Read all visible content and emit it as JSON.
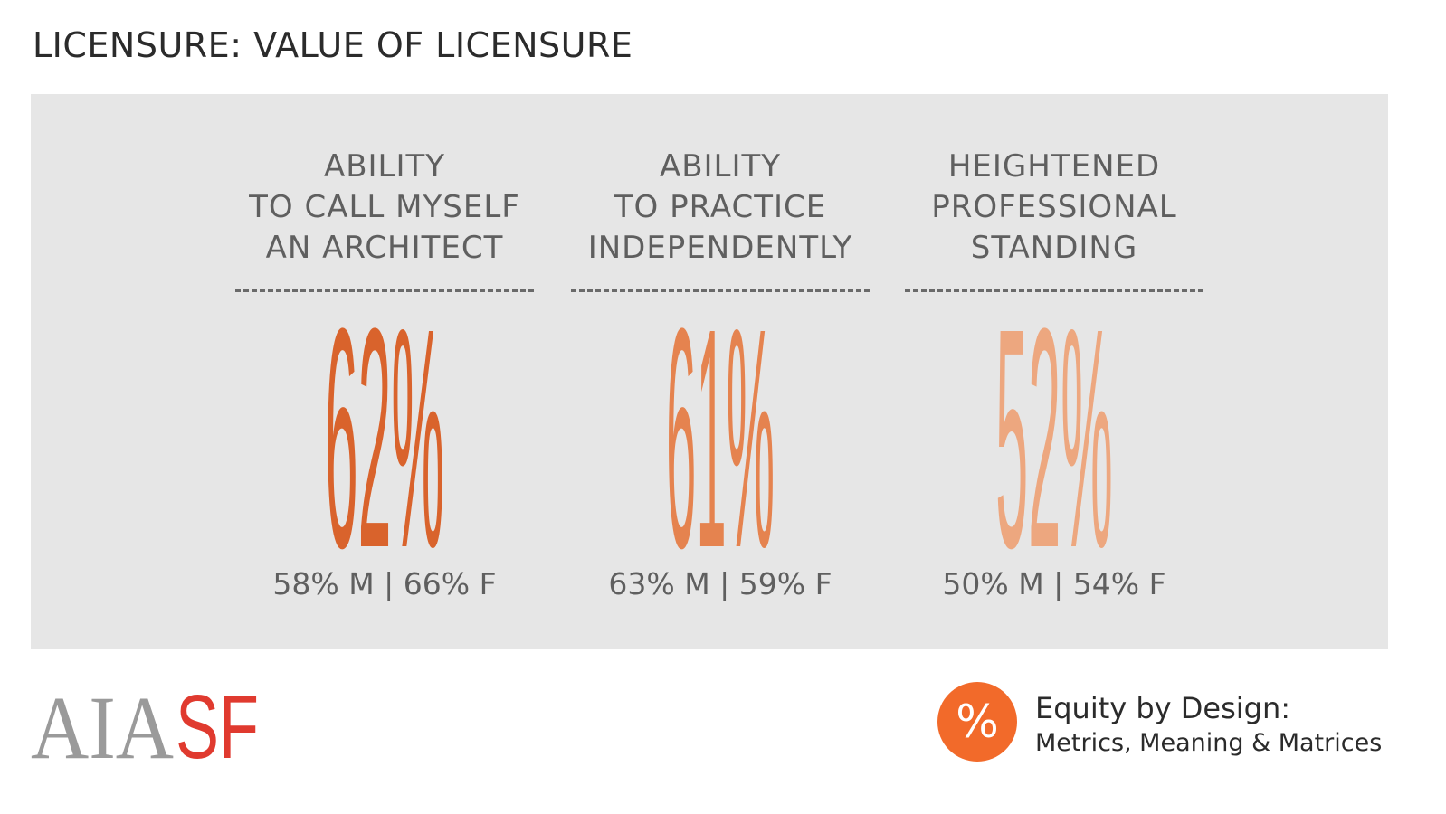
{
  "title": "LICENSURE: VALUE OF LICENSURE",
  "chart_data": {
    "type": "table",
    "categories": [
      [
        "ABILITY",
        "TO CALL MYSELF",
        "AN ARCHITECT"
      ],
      [
        "ABILITY",
        "TO PRACTICE",
        "INDEPENDENTLY"
      ],
      [
        "HEIGHTENED",
        "PROFESSIONAL",
        "STANDING"
      ]
    ],
    "values": [
      62,
      61,
      52
    ],
    "value_labels": [
      "62%",
      "61%",
      "52%"
    ],
    "breakdown_labels": [
      "58% M | 66% F",
      "63% M | 59% F",
      "50% M | 54% F"
    ],
    "male": [
      58,
      63,
      50
    ],
    "female": [
      66,
      59,
      54
    ],
    "colors": [
      "#d9632c",
      "#e5834f",
      "#eda77f"
    ]
  },
  "branding": {
    "logo_aia": "AIA",
    "logo_sf": "SF",
    "aia_color": "#9a9a9a",
    "sf_color": "#e03a2f",
    "equity_icon": "%",
    "equity_icon_color": "#f26a2a",
    "equity_title": "Equity by Design:",
    "equity_subtitle": "Metrics, Meaning & Matrices"
  }
}
